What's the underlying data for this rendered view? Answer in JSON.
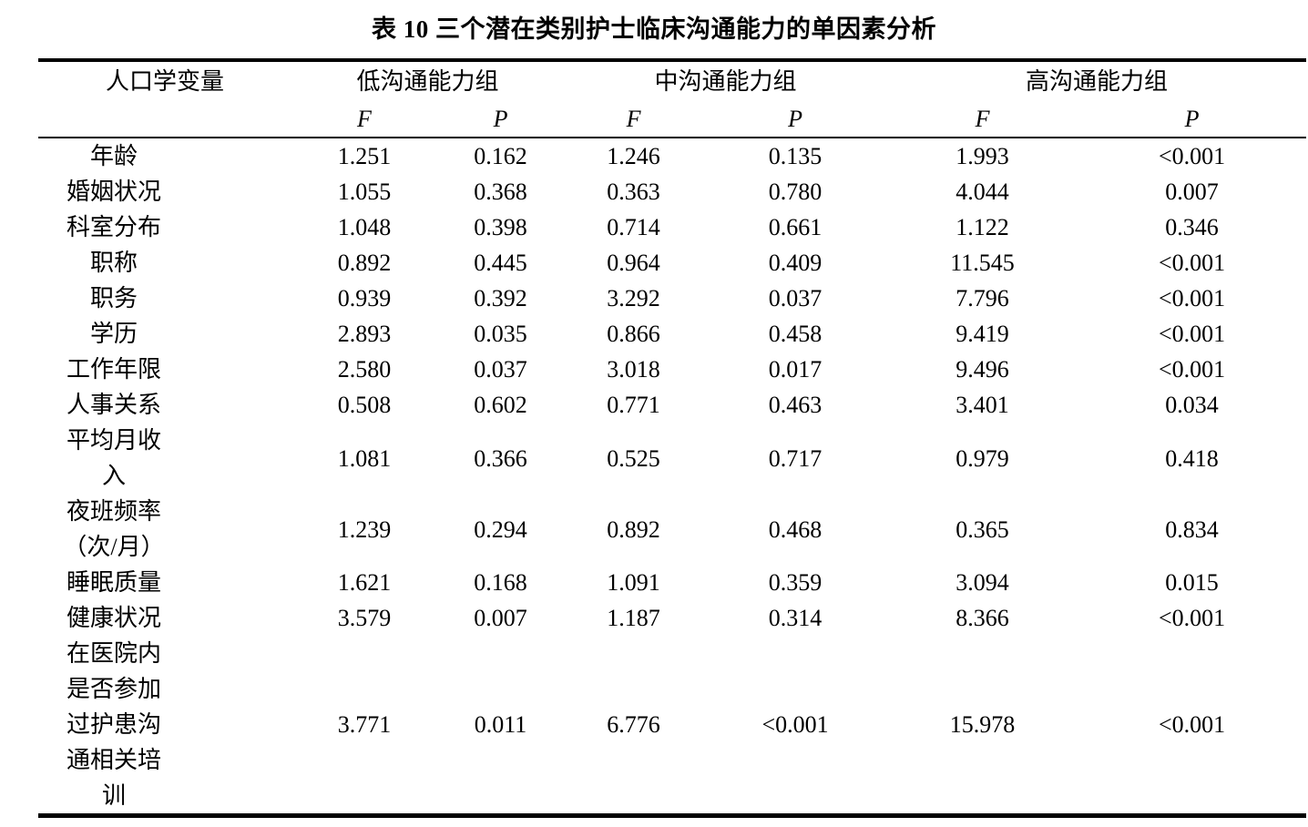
{
  "title": "表 10  三个潜在类别护士临床沟通能力的单因素分析",
  "table": {
    "demographic_header": "人口学变量",
    "groups": [
      {
        "label": "低沟通能力组"
      },
      {
        "label": "中沟通能力组"
      },
      {
        "label": "高沟通能力组"
      }
    ],
    "stat_headers": {
      "f": "F",
      "p": "P"
    },
    "rows": [
      {
        "variable": "年龄",
        "values": [
          "1.251",
          "0.162",
          "1.246",
          "0.135",
          "1.993",
          "<0.001"
        ]
      },
      {
        "variable": "婚姻状况",
        "values": [
          "1.055",
          "0.368",
          "0.363",
          "0.780",
          "4.044",
          "0.007"
        ]
      },
      {
        "variable": "科室分布",
        "values": [
          "1.048",
          "0.398",
          "0.714",
          "0.661",
          "1.122",
          "0.346"
        ]
      },
      {
        "variable": "职称",
        "values": [
          "0.892",
          "0.445",
          "0.964",
          "0.409",
          "11.545",
          "<0.001"
        ]
      },
      {
        "variable": "职务",
        "values": [
          "0.939",
          "0.392",
          "3.292",
          "0.037",
          "7.796",
          "<0.001"
        ]
      },
      {
        "variable": "学历",
        "values": [
          "2.893",
          "0.035",
          "0.866",
          "0.458",
          "9.419",
          "<0.001"
        ]
      },
      {
        "variable": "工作年限",
        "values": [
          "2.580",
          "0.037",
          "3.018",
          "0.017",
          "9.496",
          "<0.001"
        ]
      },
      {
        "variable": "人事关系",
        "values": [
          "0.508",
          "0.602",
          "0.771",
          "0.463",
          "3.401",
          "0.034"
        ]
      },
      {
        "variable": "平均月收\n入",
        "values": [
          "1.081",
          "0.366",
          "0.525",
          "0.717",
          "0.979",
          "0.418"
        ]
      },
      {
        "variable": "夜班频率\n（次/月）",
        "values": [
          "1.239",
          "0.294",
          "0.892",
          "0.468",
          "0.365",
          "0.834"
        ]
      },
      {
        "variable": "睡眠质量",
        "values": [
          "1.621",
          "0.168",
          "1.091",
          "0.359",
          "3.094",
          "0.015"
        ]
      },
      {
        "variable": "健康状况",
        "values": [
          "3.579",
          "0.007",
          "1.187",
          "0.314",
          "8.366",
          "<0.001"
        ]
      },
      {
        "variable": "在医院内\n是否参加\n过护患沟\n通相关培\n训",
        "values": [
          "3.771",
          "0.011",
          "6.776",
          "<0.001",
          "15.978",
          "<0.001"
        ]
      }
    ]
  },
  "chart_data": {
    "type": "table",
    "title": "表 10  三个潜在类别护士临床沟通能力的单因素分析",
    "column_groups": [
      "低沟通能力组",
      "中沟通能力组",
      "高沟通能力组"
    ],
    "columns": [
      "人口学变量",
      "低F",
      "低P",
      "中F",
      "中P",
      "高F",
      "高P"
    ],
    "rows": [
      [
        "年龄",
        "1.251",
        "0.162",
        "1.246",
        "0.135",
        "1.993",
        "<0.001"
      ],
      [
        "婚姻状况",
        "1.055",
        "0.368",
        "0.363",
        "0.780",
        "4.044",
        "0.007"
      ],
      [
        "科室分布",
        "1.048",
        "0.398",
        "0.714",
        "0.661",
        "1.122",
        "0.346"
      ],
      [
        "职称",
        "0.892",
        "0.445",
        "0.964",
        "0.409",
        "11.545",
        "<0.001"
      ],
      [
        "职务",
        "0.939",
        "0.392",
        "3.292",
        "0.037",
        "7.796",
        "<0.001"
      ],
      [
        "学历",
        "2.893",
        "0.035",
        "0.866",
        "0.458",
        "9.419",
        "<0.001"
      ],
      [
        "工作年限",
        "2.580",
        "0.037",
        "3.018",
        "0.017",
        "9.496",
        "<0.001"
      ],
      [
        "人事关系",
        "0.508",
        "0.602",
        "0.771",
        "0.463",
        "3.401",
        "0.034"
      ],
      [
        "平均月收入",
        "1.081",
        "0.366",
        "0.525",
        "0.717",
        "0.979",
        "0.418"
      ],
      [
        "夜班频率（次/月）",
        "1.239",
        "0.294",
        "0.892",
        "0.468",
        "0.365",
        "0.834"
      ],
      [
        "睡眠质量",
        "1.621",
        "0.168",
        "1.091",
        "0.359",
        "3.094",
        "0.015"
      ],
      [
        "健康状况",
        "3.579",
        "0.007",
        "1.187",
        "0.314",
        "8.366",
        "<0.001"
      ],
      [
        "在医院内是否参加过护患沟通相关培训",
        "3.771",
        "0.011",
        "6.776",
        "<0.001",
        "15.978",
        "<0.001"
      ]
    ]
  }
}
